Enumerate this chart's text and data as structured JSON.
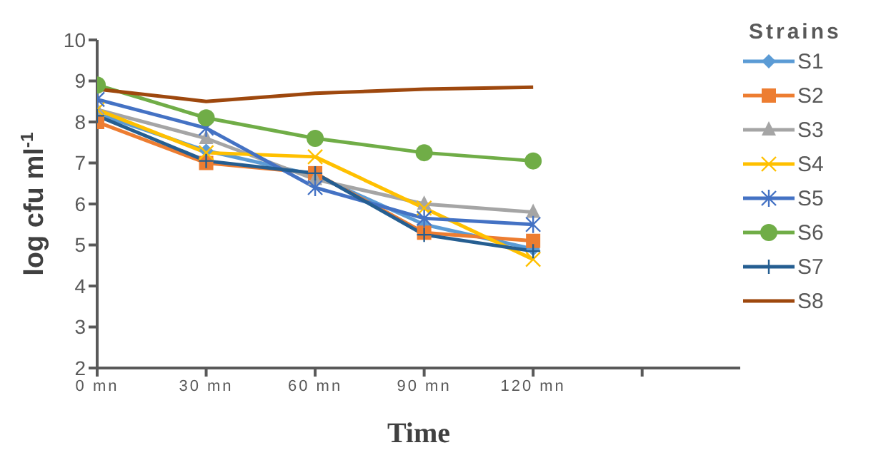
{
  "chart_data": {
    "type": "line",
    "xlabel": "Time",
    "ylabel": "log cfu ml$^{-1}$",
    "legend_title": "Strains",
    "legend": "top right",
    "grid": false,
    "categories": [
      "0 mn",
      "30 mn",
      "60 mn",
      "90 mn",
      "120 mn",
      null
    ],
    "ylim": [
      2,
      10
    ],
    "yticks": [
      2,
      3,
      4,
      5,
      6,
      7,
      8,
      9,
      10
    ],
    "series": [
      {
        "name": "S1",
        "color": "#5b9bd5",
        "marker": "diamond",
        "values": [
          8.2,
          7.3,
          6.7,
          5.5,
          4.9,
          null
        ]
      },
      {
        "name": "S2",
        "color": "#ed7d31",
        "marker": "square",
        "values": [
          8.0,
          7.0,
          6.75,
          5.3,
          5.1,
          null
        ]
      },
      {
        "name": "S3",
        "color": "#a5a5a5",
        "marker": "triangle",
        "values": [
          8.3,
          7.6,
          6.6,
          6.0,
          5.8,
          null
        ]
      },
      {
        "name": "S4",
        "color": "#ffc000",
        "marker": "cross",
        "values": [
          8.3,
          7.25,
          7.15,
          5.9,
          4.65,
          null
        ]
      },
      {
        "name": "S5",
        "color": "#4472c4",
        "marker": "cross",
        "values": [
          8.55,
          7.85,
          6.4,
          5.65,
          5.5,
          null
        ]
      },
      {
        "name": "S6",
        "color": "#70ad47",
        "marker": "circle",
        "values": [
          8.9,
          8.1,
          7.6,
          7.25,
          7.05,
          null
        ]
      },
      {
        "name": "S7",
        "color": "#255e91",
        "marker": "cross",
        "values": [
          8.15,
          7.05,
          6.75,
          5.25,
          4.85,
          null
        ]
      },
      {
        "name": "S8",
        "color": "#9e480e",
        "marker": "none",
        "values": [
          8.8,
          8.5,
          8.7,
          8.8,
          8.85,
          null
        ]
      }
    ]
  }
}
